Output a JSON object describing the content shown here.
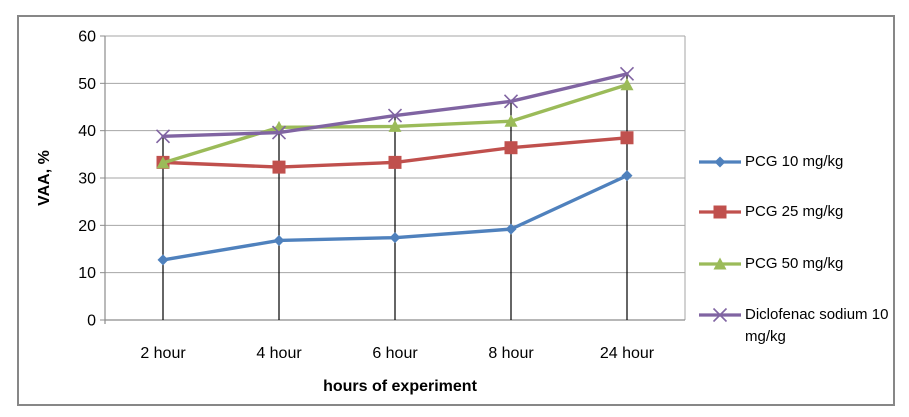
{
  "chart_data": {
    "type": "line",
    "title": "",
    "xlabel": "hours of experiment",
    "ylabel": "VAA, %",
    "categories": [
      "2 hour",
      "4 hour",
      "6 hour",
      "8 hour",
      "24 hour"
    ],
    "series": [
      {
        "name": "PCG 10 mg/kg",
        "color": "#4F81BD",
        "marker": "diamond",
        "values": [
          12.7,
          16.8,
          17.4,
          19.2,
          30.5
        ]
      },
      {
        "name": "PCG 25 mg/kg",
        "color": "#C0504D",
        "marker": "square",
        "values": [
          33.3,
          32.3,
          33.3,
          36.4,
          38.5
        ]
      },
      {
        "name": "PCG 50 mg/kg",
        "color": "#9BBB59",
        "marker": "triangle",
        "values": [
          33.2,
          40.7,
          40.9,
          42.0,
          49.7
        ]
      },
      {
        "name": "Diclofenac sodium 10 mg/kg",
        "color": "#8064A2",
        "marker": "x",
        "values": [
          38.8,
          39.6,
          43.2,
          46.2,
          52.0
        ]
      }
    ],
    "ylim": [
      0,
      60
    ],
    "yticks": [
      0,
      10,
      20,
      30,
      40,
      50,
      60
    ],
    "grid": true,
    "legend_position": "right",
    "drop_lines": true,
    "grid_color": "#A6A6A6",
    "axis_color": "#8C8C8C",
    "drop_line_color": "#000000",
    "text_color": "#000000",
    "border_color": "#878787"
  }
}
